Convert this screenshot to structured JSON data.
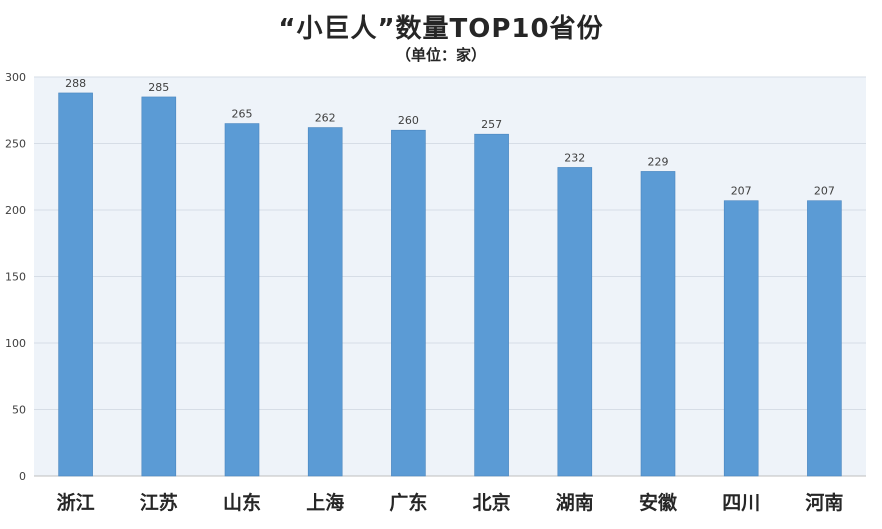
{
  "chart_data": {
    "type": "bar",
    "title": "“小巨人”数量TOP10省份",
    "subtitle": "（单位：家）",
    "categories": [
      "浙江",
      "江苏",
      "山东",
      "上海",
      "广东",
      "北京",
      "湖南",
      "安徽",
      "四川",
      "河南"
    ],
    "values": [
      288,
      285,
      265,
      262,
      260,
      257,
      232,
      229,
      207,
      207
    ],
    "ylim": [
      0,
      300
    ],
    "yticks": [
      0,
      50,
      100,
      150,
      200,
      250,
      300
    ],
    "xlabel": "",
    "ylabel": "",
    "grid": true,
    "legend": "none",
    "data_labels": true,
    "colors": {
      "bar": "#5b9bd5",
      "bar_edge": "#4a86bf",
      "plot_bg": "#eef3f9",
      "grid": "#d6dde6",
      "axis_text": "#404040",
      "category_text": "#262626",
      "value_text": "#404040"
    }
  }
}
